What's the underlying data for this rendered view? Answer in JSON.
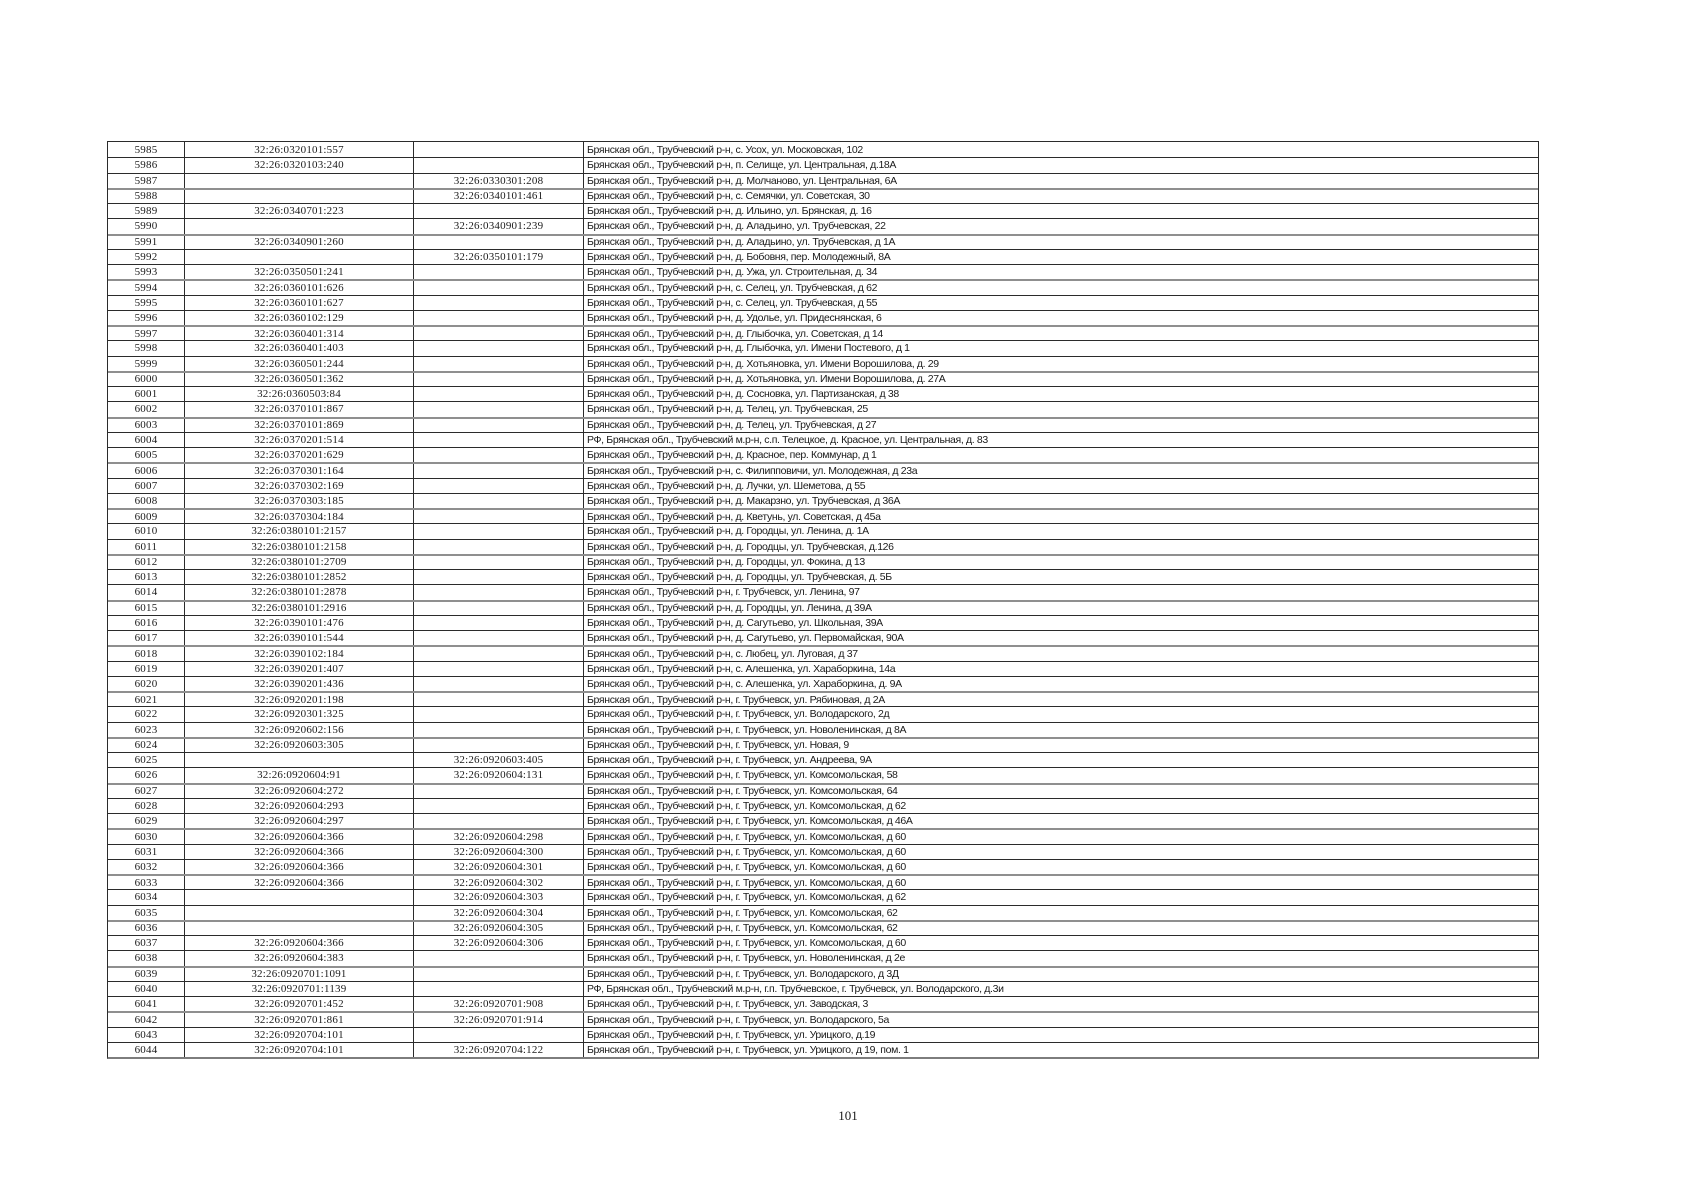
{
  "page": {
    "number_label": "101"
  },
  "table": {
    "columns": [
      "row_no",
      "cadastral_number_primary",
      "cadastral_number_secondary",
      "address"
    ],
    "rows": [
      {
        "no": "5985",
        "cad1": "32:26:0320101:557",
        "cad2": "",
        "address": "Брянская обл., Трубчевский р-н, с. Усох, ул. Московская, 102"
      },
      {
        "no": "5986",
        "cad1": "32:26:0320103:240",
        "cad2": "",
        "address": "Брянская обл., Трубчевский р-н, п. Селище, ул. Центральная, д.18А"
      },
      {
        "no": "5987",
        "cad1": "",
        "cad2": "32:26:0330301:208",
        "address": "Брянская обл., Трубчевский р-н, д. Молчаново, ул. Центральная, 6А"
      },
      {
        "no": "5988",
        "cad1": "",
        "cad2": "32:26:0340101:461",
        "address": "Брянская обл., Трубчевский р-н, с. Семячки, ул. Советская, 30"
      },
      {
        "no": "5989",
        "cad1": "32:26:0340701:223",
        "cad2": "",
        "address": "Брянская обл., Трубчевский р-н, д. Ильино, ул. Брянская, д. 16"
      },
      {
        "no": "5990",
        "cad1": "",
        "cad2": "32:26:0340901:239",
        "address": "Брянская обл., Трубчевский р-н, д. Аладьино, ул. Трубчевская, 22"
      },
      {
        "no": "5991",
        "cad1": "32:26:0340901:260",
        "cad2": "",
        "address": "Брянская обл., Трубчевский р-н, д. Аладьино, ул. Трубчевская, д 1А"
      },
      {
        "no": "5992",
        "cad1": "",
        "cad2": "32:26:0350101:179",
        "address": "Брянская обл., Трубчевский р-н, д. Бобовня, пер. Молодежный, 8А"
      },
      {
        "no": "5993",
        "cad1": "32:26:0350501:241",
        "cad2": "",
        "address": "Брянская обл., Трубчевский р-н, д. Ужа, ул. Строительная, д. 34"
      },
      {
        "no": "5994",
        "cad1": "32:26:0360101:626",
        "cad2": "",
        "address": "Брянская обл., Трубчевский р-н, с. Селец, ул. Трубчевская, д 62"
      },
      {
        "no": "5995",
        "cad1": "32:26:0360101:627",
        "cad2": "",
        "address": "Брянская обл., Трубчевский р-н, с. Селец, ул. Трубчевская, д 55"
      },
      {
        "no": "5996",
        "cad1": "32:26:0360102:129",
        "cad2": "",
        "address": "Брянская обл., Трубчевский р-н, д. Удолье, ул. Придеснянская, 6"
      },
      {
        "no": "5997",
        "cad1": "32:26:0360401:314",
        "cad2": "",
        "address": "Брянская обл., Трубчевский р-н, д. Глыбочка, ул. Советская, д 14"
      },
      {
        "no": "5998",
        "cad1": "32:26:0360401:403",
        "cad2": "",
        "address": "Брянская обл., Трубчевский р-н, д. Глыбочка, ул. Имени Постевого, д 1"
      },
      {
        "no": "5999",
        "cad1": "32:26:0360501:244",
        "cad2": "",
        "address": "Брянская обл., Трубчевский р-н, д. Хотьяновка, ул. Имени Ворошилова, д. 29"
      },
      {
        "no": "6000",
        "cad1": "32:26:0360501:362",
        "cad2": "",
        "address": "Брянская обл., Трубчевский р-н, д. Хотьяновка, ул. Имени Ворошилова, д. 27А"
      },
      {
        "no": "6001",
        "cad1": "32:26:0360503:84",
        "cad2": "",
        "address": "Брянская обл., Трубчевский р-н, д. Сосновка, ул. Партизанская, д 38"
      },
      {
        "no": "6002",
        "cad1": "32:26:0370101:867",
        "cad2": "",
        "address": "Брянская обл., Трубчевский р-н, д. Телец, ул. Трубчевская, 25"
      },
      {
        "no": "6003",
        "cad1": "32:26:0370101:869",
        "cad2": "",
        "address": "Брянская обл., Трубчевский р-н, д. Телец, ул. Трубчевская, д 27"
      },
      {
        "no": "6004",
        "cad1": "32:26:0370201:514",
        "cad2": "",
        "address": "РФ, Брянская обл., Трубчевский м.р-н, с.п. Телецкое, д. Красное, ул. Центральная, д. 83"
      },
      {
        "no": "6005",
        "cad1": "32:26:0370201:629",
        "cad2": "",
        "address": "Брянская обл., Трубчевский р-н, д. Красное, пер. Коммунар, д 1"
      },
      {
        "no": "6006",
        "cad1": "32:26:0370301:164",
        "cad2": "",
        "address": "Брянская обл., Трубчевский р-н, с. Филипповичи, ул. Молодежная, д 23а"
      },
      {
        "no": "6007",
        "cad1": "32:26:0370302:169",
        "cad2": "",
        "address": "Брянская обл., Трубчевский р-н, д. Лучки, ул. Шеметова, д 55"
      },
      {
        "no": "6008",
        "cad1": "32:26:0370303:185",
        "cad2": "",
        "address": "Брянская обл., Трубчевский р-н, д. Макарзно, ул. Трубчевская, д 36А"
      },
      {
        "no": "6009",
        "cad1": "32:26:0370304:184",
        "cad2": "",
        "address": "Брянская обл., Трубчевский р-н, д. Кветунь, ул. Советская, д 45а"
      },
      {
        "no": "6010",
        "cad1": "32:26:0380101:2157",
        "cad2": "",
        "address": "Брянская обл., Трубчевский р-н, д. Городцы, ул. Ленина, д. 1А"
      },
      {
        "no": "6011",
        "cad1": "32:26:0380101:2158",
        "cad2": "",
        "address": "Брянская обл., Трубчевский р-н, д. Городцы, ул. Трубчевская, д.126"
      },
      {
        "no": "6012",
        "cad1": "32:26:0380101:2709",
        "cad2": "",
        "address": "Брянская обл., Трубчевский р-н, д. Городцы, ул. Фокина, д 13"
      },
      {
        "no": "6013",
        "cad1": "32:26:0380101:2852",
        "cad2": "",
        "address": "Брянская обл., Трубчевский р-н, д. Городцы, ул. Трубчевская, д. 5Б"
      },
      {
        "no": "6014",
        "cad1": "32:26:0380101:2878",
        "cad2": "",
        "address": "Брянская обл., Трубчевский р-н, г. Трубчевск, ул. Ленина, 97"
      },
      {
        "no": "6015",
        "cad1": "32:26:0380101:2916",
        "cad2": "",
        "address": "Брянская обл., Трубчевский р-н, д. Городцы, ул. Ленина, д 39А"
      },
      {
        "no": "6016",
        "cad1": "32:26:0390101:476",
        "cad2": "",
        "address": "Брянская обл., Трубчевский р-н, д. Сагутьево, ул. Школьная, 39А"
      },
      {
        "no": "6017",
        "cad1": "32:26:0390101:544",
        "cad2": "",
        "address": "Брянская обл., Трубчевский р-н, д. Сагутьево, ул. Первомайская, 90А"
      },
      {
        "no": "6018",
        "cad1": "32:26:0390102:184",
        "cad2": "",
        "address": "Брянская обл., Трубчевский р-н, с. Любец, ул. Луговая, д 37"
      },
      {
        "no": "6019",
        "cad1": "32:26:0390201:407",
        "cad2": "",
        "address": "Брянская обл., Трубчевский р-н, с. Алешенка, ул. Хараборкина, 14а"
      },
      {
        "no": "6020",
        "cad1": "32:26:0390201:436",
        "cad2": "",
        "address": "Брянская обл., Трубчевский р-н, с. Алешенка, ул. Хараборкина, д. 9А"
      },
      {
        "no": "6021",
        "cad1": "32:26:0920201:198",
        "cad2": "",
        "address": "Брянская обл., Трубчевский р-н, г. Трубчевск, ул. Рябиновая, д 2А"
      },
      {
        "no": "6022",
        "cad1": "32:26:0920301:325",
        "cad2": "",
        "address": "Брянская обл., Трубчевский р-н, г. Трубчевск, ул. Володарского, 2д"
      },
      {
        "no": "6023",
        "cad1": "32:26:0920602:156",
        "cad2": "",
        "address": "Брянская обл., Трубчевский р-н, г. Трубчевск, ул. Новоленинская, д 8А"
      },
      {
        "no": "6024",
        "cad1": "32:26:0920603:305",
        "cad2": "",
        "address": "Брянская обл., Трубчевский р-н, г. Трубчевск, ул. Новая, 9"
      },
      {
        "no": "6025",
        "cad1": "",
        "cad2": "32:26:0920603:405",
        "address": "Брянская обл., Трубчевский р-н, г. Трубчевск, ул. Андреева, 9А"
      },
      {
        "no": "6026",
        "cad1": "32:26:0920604:91",
        "cad2": "32:26:0920604:131",
        "address": "Брянская обл., Трубчевский р-н, г. Трубчевск, ул. Комсомольская, 58"
      },
      {
        "no": "6027",
        "cad1": "32:26:0920604:272",
        "cad2": "",
        "address": "Брянская обл., Трубчевский р-н, г. Трубчевск, ул. Комсомольская, 64"
      },
      {
        "no": "6028",
        "cad1": "32:26:0920604:293",
        "cad2": "",
        "address": "Брянская обл., Трубчевский р-н, г. Трубчевск, ул. Комсомольская, д 62"
      },
      {
        "no": "6029",
        "cad1": "32:26:0920604:297",
        "cad2": "",
        "address": "Брянская обл., Трубчевский р-н, г. Трубчевск, ул. Комсомольская, д 46А"
      },
      {
        "no": "6030",
        "cad1": "32:26:0920604:366",
        "cad2": "32:26:0920604:298",
        "address": "Брянская обл., Трубчевский р-н, г. Трубчевск, ул. Комсомольская, д 60"
      },
      {
        "no": "6031",
        "cad1": "32:26:0920604:366",
        "cad2": "32:26:0920604:300",
        "address": "Брянская обл., Трубчевский р-н, г. Трубчевск, ул. Комсомольская, д 60"
      },
      {
        "no": "6032",
        "cad1": "32:26:0920604:366",
        "cad2": "32:26:0920604:301",
        "address": "Брянская обл., Трубчевский р-н, г. Трубчевск, ул. Комсомольская, д 60"
      },
      {
        "no": "6033",
        "cad1": "32:26:0920604:366",
        "cad2": "32:26:0920604:302",
        "address": "Брянская обл., Трубчевский р-н, г. Трубчевск, ул. Комсомольская, д 60"
      },
      {
        "no": "6034",
        "cad1": "",
        "cad2": "32:26:0920604:303",
        "address": "Брянская обл., Трубчевский р-н, г. Трубчевск, ул. Комсомольская, д 62"
      },
      {
        "no": "6035",
        "cad1": "",
        "cad2": "32:26:0920604:304",
        "address": "Брянская обл., Трубчевский р-н, г. Трубчевск, ул. Комсомольская, 62"
      },
      {
        "no": "6036",
        "cad1": "",
        "cad2": "32:26:0920604:305",
        "address": "Брянская обл., Трубчевский р-н, г. Трубчевск, ул. Комсомольская, 62"
      },
      {
        "no": "6037",
        "cad1": "32:26:0920604:366",
        "cad2": "32:26:0920604:306",
        "address": "Брянская обл., Трубчевский р-н, г. Трубчевск, ул. Комсомольская, д 60"
      },
      {
        "no": "6038",
        "cad1": "32:26:0920604:383",
        "cad2": "",
        "address": "Брянская обл., Трубчевский р-н, г. Трубчевск, ул. Новоленинская, д 2е"
      },
      {
        "no": "6039",
        "cad1": "32:26:0920701:1091",
        "cad2": "",
        "address": "Брянская обл., Трубчевский р-н, г. Трубчевск, ул. Володарского, д 3Д"
      },
      {
        "no": "6040",
        "cad1": "32:26:0920701:1139",
        "cad2": "",
        "address": "РФ, Брянская обл., Трубчевский м.р-н, г.п. Трубчевское, г. Трубчевск, ул. Володарского, д.3и"
      },
      {
        "no": "6041",
        "cad1": "32:26:0920701:452",
        "cad2": "32:26:0920701:908",
        "address": "Брянская обл., Трубчевский р-н, г. Трубчевск, ул. Заводская, 3"
      },
      {
        "no": "6042",
        "cad1": "32:26:0920701:861",
        "cad2": "32:26:0920701:914",
        "address": "Брянская обл., Трубчевский р-н, г. Трубчевск, ул. Володарского, 5а"
      },
      {
        "no": "6043",
        "cad1": "32:26:0920704:101",
        "cad2": "",
        "address": "Брянская обл., Трубчевский р-н, г. Трубчевск, ул. Урицкого, д.19"
      },
      {
        "no": "6044",
        "cad1": "32:26:0920704:101",
        "cad2": "32:26:0920704:122",
        "address": "Брянская обл., Трубчевский р-н, г. Трубчевск, ул. Урицкого, д 19, пом. 1"
      }
    ]
  }
}
